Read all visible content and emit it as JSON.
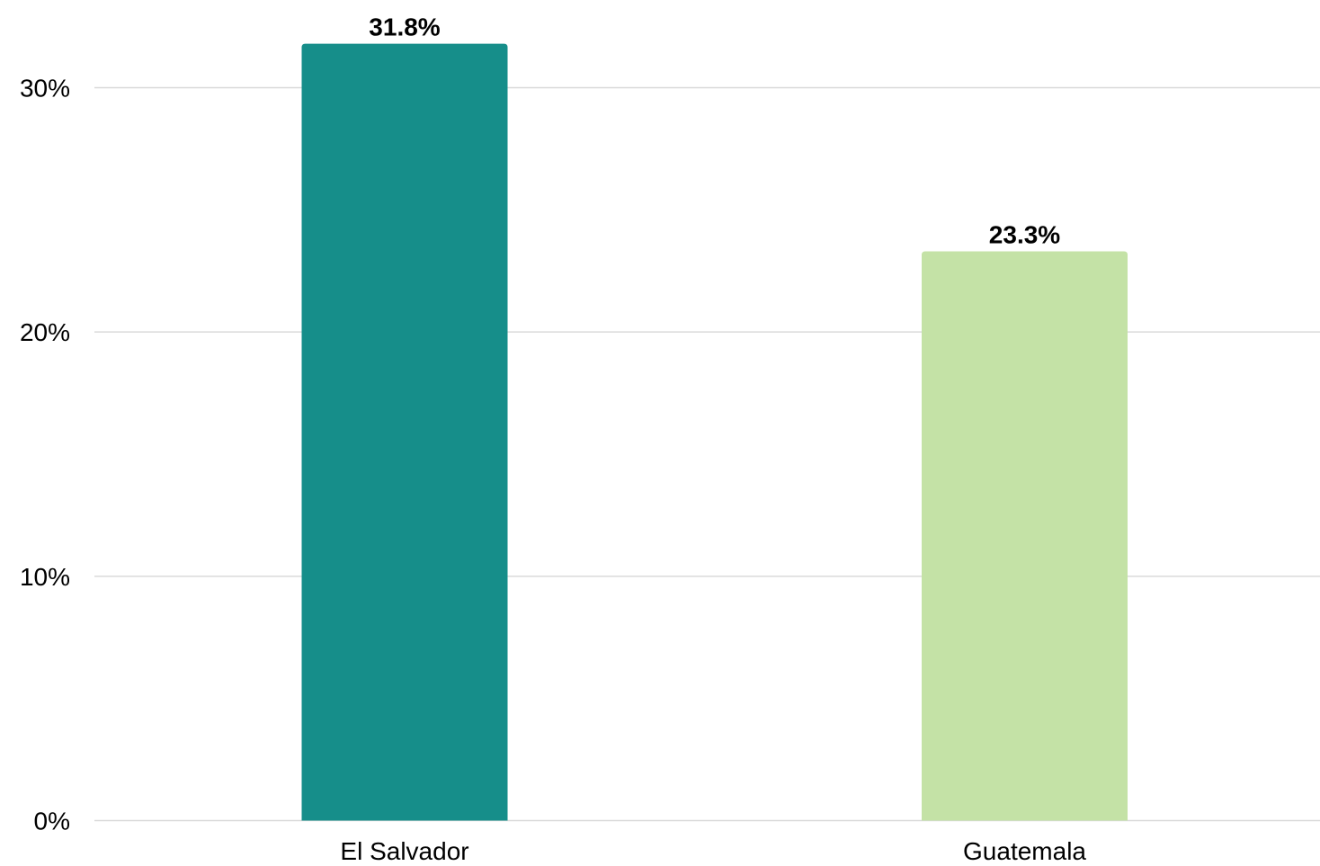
{
  "chart_data": {
    "type": "bar",
    "categories": [
      "El Salvador",
      "Guatemala"
    ],
    "values": [
      31.8,
      23.3
    ],
    "data_labels": [
      "31.8%",
      "23.3%"
    ],
    "colors": [
      "#168e8a",
      "#c4e2a6"
    ],
    "y_ticks": [
      0,
      10,
      20,
      30
    ],
    "y_tick_labels": [
      "0%",
      "10%",
      "20%",
      "30%"
    ],
    "ylim": [
      0,
      30
    ],
    "grid": true,
    "legend": "none",
    "gridline_color": "#d9d9d9"
  }
}
